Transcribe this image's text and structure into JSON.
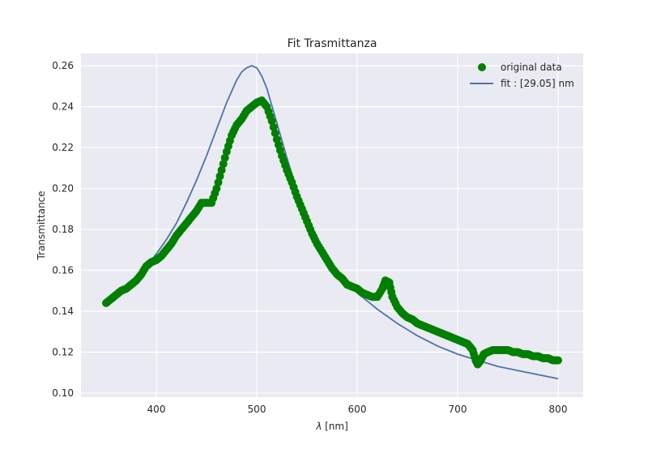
{
  "chart_data": {
    "type": "scatter",
    "title": "Fit Trasmittanza",
    "xlabel_symbol": "λ",
    "xlabel_unit": "[nm]",
    "ylabel": "Transmittance",
    "xlim": [
      325,
      825
    ],
    "ylim": [
      0.098,
      0.266
    ],
    "x_ticks": [
      400,
      500,
      600,
      700,
      800
    ],
    "x_tick_labels": [
      "400",
      "500",
      "600",
      "700",
      "800"
    ],
    "y_ticks": [
      0.1,
      0.12,
      0.14,
      0.16,
      0.18,
      0.2,
      0.22,
      0.24,
      0.26
    ],
    "y_tick_labels": [
      "0.10",
      "0.12",
      "0.14",
      "0.16",
      "0.18",
      "0.20",
      "0.22",
      "0.24",
      "0.26"
    ],
    "grid": true,
    "legend_position": "top-right",
    "series": [
      {
        "name": "original data",
        "kind": "markers",
        "color": "#008000",
        "x": [
          350,
          355,
          360,
          365,
          370,
          375,
          380,
          385,
          390,
          395,
          400,
          405,
          410,
          415,
          420,
          425,
          430,
          435,
          440,
          445,
          450,
          455,
          460,
          465,
          470,
          475,
          480,
          485,
          490,
          495,
          500,
          505,
          510,
          515,
          520,
          525,
          530,
          535,
          540,
          545,
          550,
          555,
          560,
          565,
          570,
          575,
          580,
          585,
          590,
          595,
          600,
          605,
          610,
          615,
          620,
          625,
          628,
          632,
          635,
          640,
          645,
          650,
          655,
          660,
          665,
          670,
          675,
          680,
          685,
          690,
          695,
          700,
          705,
          710,
          715,
          718,
          720,
          723,
          726,
          730,
          735,
          740,
          745,
          750,
          755,
          760,
          765,
          770,
          775,
          780,
          785,
          790,
          795,
          800
        ],
        "y": [
          0.144,
          0.146,
          0.148,
          0.15,
          0.151,
          0.153,
          0.155,
          0.158,
          0.162,
          0.164,
          0.165,
          0.167,
          0.17,
          0.173,
          0.177,
          0.18,
          0.183,
          0.186,
          0.189,
          0.193,
          0.193,
          0.193,
          0.2,
          0.209,
          0.218,
          0.226,
          0.231,
          0.234,
          0.238,
          0.24,
          0.242,
          0.243,
          0.24,
          0.233,
          0.224,
          0.216,
          0.209,
          0.203,
          0.196,
          0.19,
          0.184,
          0.178,
          0.173,
          0.169,
          0.165,
          0.161,
          0.158,
          0.156,
          0.153,
          0.152,
          0.151,
          0.149,
          0.148,
          0.147,
          0.147,
          0.151,
          0.155,
          0.154,
          0.147,
          0.142,
          0.139,
          0.137,
          0.136,
          0.134,
          0.133,
          0.132,
          0.131,
          0.13,
          0.129,
          0.128,
          0.127,
          0.126,
          0.125,
          0.124,
          0.121,
          0.116,
          0.114,
          0.116,
          0.119,
          0.12,
          0.121,
          0.121,
          0.121,
          0.121,
          0.12,
          0.12,
          0.119,
          0.119,
          0.118,
          0.118,
          0.117,
          0.117,
          0.116,
          0.116
        ]
      },
      {
        "name": "fit : [29.05] nm",
        "kind": "line",
        "color": "#4c72b0",
        "x": [
          350,
          360,
          370,
          380,
          390,
          400,
          410,
          420,
          430,
          440,
          450,
          460,
          470,
          480,
          485,
          490,
          495,
          500,
          505,
          510,
          520,
          530,
          540,
          550,
          560,
          570,
          580,
          590,
          600,
          620,
          640,
          660,
          680,
          700,
          720,
          740,
          760,
          780,
          800
        ],
        "y": [
          0.143,
          0.148,
          0.152,
          0.157,
          0.162,
          0.168,
          0.175,
          0.183,
          0.193,
          0.204,
          0.216,
          0.229,
          0.242,
          0.253,
          0.257,
          0.259,
          0.26,
          0.259,
          0.255,
          0.249,
          0.232,
          0.215,
          0.199,
          0.186,
          0.175,
          0.166,
          0.159,
          0.154,
          0.149,
          0.141,
          0.134,
          0.128,
          0.123,
          0.119,
          0.116,
          0.113,
          0.111,
          0.109,
          0.107
        ]
      }
    ]
  }
}
